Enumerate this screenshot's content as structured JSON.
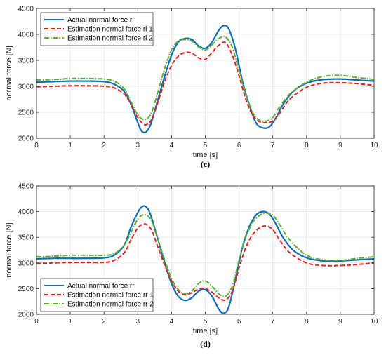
{
  "chart_data": [
    {
      "type": "line",
      "panel_label": "(c)",
      "xlabel": "time [s]",
      "ylabel": "normal force [N]",
      "xlim": [
        0,
        10
      ],
      "ylim": [
        2000,
        4500
      ],
      "xticks": [
        0,
        1,
        2,
        3,
        4,
        5,
        6,
        7,
        8,
        9,
        10
      ],
      "yticks": [
        2000,
        2500,
        3000,
        3500,
        4000,
        4500
      ],
      "grid": true,
      "legend_position": "top-left",
      "series": [
        {
          "name": "Actual normal force rl",
          "color": "#0c6eb8",
          "style": "solid",
          "x": [
            0,
            0.5,
            1,
            1.5,
            2,
            2.3,
            2.6,
            2.8,
            3.0,
            3.1,
            3.2,
            3.3,
            3.4,
            3.6,
            3.8,
            4.0,
            4.2,
            4.4,
            4.6,
            4.8,
            5.0,
            5.2,
            5.4,
            5.55,
            5.7,
            5.9,
            6.1,
            6.3,
            6.5,
            6.7,
            6.9,
            7.1,
            7.3,
            7.6,
            8.0,
            8.5,
            9.0,
            9.5,
            10
          ],
          "y": [
            3080,
            3090,
            3100,
            3100,
            3090,
            3040,
            2900,
            2650,
            2300,
            2150,
            2110,
            2160,
            2300,
            2750,
            3200,
            3600,
            3850,
            3920,
            3900,
            3780,
            3730,
            3850,
            4080,
            4170,
            4100,
            3700,
            3100,
            2650,
            2300,
            2200,
            2220,
            2400,
            2650,
            2900,
            3060,
            3130,
            3140,
            3120,
            3100
          ]
        },
        {
          "name": "Estimation normal force rl 1",
          "color": "#e8211f",
          "style": "dashed",
          "x": [
            0,
            0.5,
            1,
            1.5,
            2,
            2.3,
            2.6,
            2.8,
            3.0,
            3.2,
            3.4,
            3.6,
            3.8,
            4.0,
            4.2,
            4.4,
            4.6,
            4.8,
            5.0,
            5.2,
            5.4,
            5.6,
            5.8,
            6.0,
            6.2,
            6.4,
            6.6,
            6.8,
            7.0,
            7.2,
            7.5,
            8.0,
            8.5,
            9.0,
            9.5,
            10
          ],
          "y": [
            2990,
            3000,
            3010,
            3010,
            3000,
            2970,
            2850,
            2650,
            2400,
            2260,
            2350,
            2700,
            3100,
            3400,
            3580,
            3650,
            3640,
            3550,
            3520,
            3650,
            3790,
            3840,
            3600,
            3200,
            2750,
            2450,
            2320,
            2300,
            2330,
            2480,
            2750,
            2980,
            3060,
            3070,
            3050,
            3020
          ]
        },
        {
          "name": "Estimation normal force rl 2",
          "color": "#5cb034",
          "style": "dashdot",
          "x": [
            0,
            0.5,
            1,
            1.5,
            2,
            2.3,
            2.6,
            2.8,
            3.0,
            3.2,
            3.4,
            3.6,
            3.8,
            4.0,
            4.2,
            4.4,
            4.6,
            4.8,
            5.0,
            5.2,
            5.4,
            5.6,
            5.8,
            6.0,
            6.2,
            6.4,
            6.6,
            6.8,
            7.0,
            7.2,
            7.5,
            8.0,
            8.5,
            9.0,
            9.5,
            10
          ],
          "y": [
            3120,
            3130,
            3150,
            3150,
            3140,
            3100,
            2950,
            2700,
            2450,
            2360,
            2480,
            2900,
            3350,
            3700,
            3870,
            3900,
            3870,
            3760,
            3700,
            3800,
            3920,
            3950,
            3750,
            3300,
            2850,
            2500,
            2350,
            2330,
            2400,
            2600,
            2850,
            3080,
            3190,
            3210,
            3170,
            3130
          ]
        }
      ]
    },
    {
      "type": "line",
      "panel_label": "(d)",
      "xlabel": "time [s]",
      "ylabel": "normal force [N]",
      "xlim": [
        0,
        10
      ],
      "ylim": [
        2000,
        4500
      ],
      "xticks": [
        0,
        1,
        2,
        3,
        4,
        5,
        6,
        7,
        8,
        9,
        10
      ],
      "yticks": [
        2000,
        2500,
        3000,
        3500,
        4000,
        4500
      ],
      "grid": true,
      "legend_position": "bottom-left",
      "series": [
        {
          "name": "Actual normal force rr",
          "color": "#0c6eb8",
          "style": "solid",
          "x": [
            0,
            0.5,
            1,
            1.5,
            2,
            2.3,
            2.6,
            2.8,
            3.0,
            3.1,
            3.2,
            3.3,
            3.4,
            3.6,
            3.8,
            4.0,
            4.2,
            4.4,
            4.6,
            4.8,
            5.0,
            5.2,
            5.4,
            5.55,
            5.7,
            5.9,
            6.1,
            6.3,
            6.5,
            6.7,
            6.9,
            7.1,
            7.3,
            7.6,
            8.0,
            8.5,
            9.0,
            9.5,
            10
          ],
          "y": [
            3080,
            3090,
            3090,
            3090,
            3100,
            3150,
            3350,
            3700,
            3980,
            4080,
            4110,
            4050,
            3900,
            3450,
            3000,
            2600,
            2350,
            2270,
            2320,
            2450,
            2480,
            2350,
            2100,
            2020,
            2150,
            2700,
            3300,
            3700,
            3930,
            4000,
            3950,
            3750,
            3500,
            3250,
            3100,
            3040,
            3040,
            3060,
            3080
          ]
        },
        {
          "name": "Estimation normal force rr 1",
          "color": "#e8211f",
          "style": "dashed",
          "x": [
            0,
            0.5,
            1,
            1.5,
            2,
            2.3,
            2.6,
            2.8,
            3.0,
            3.2,
            3.4,
            3.6,
            3.8,
            4.0,
            4.2,
            4.4,
            4.6,
            4.8,
            5.0,
            5.2,
            5.4,
            5.6,
            5.8,
            6.0,
            6.2,
            6.4,
            6.6,
            6.8,
            7.0,
            7.2,
            7.5,
            8.0,
            8.5,
            9.0,
            9.5,
            10
          ],
          "y": [
            2990,
            3000,
            3010,
            3010,
            3010,
            3050,
            3200,
            3450,
            3680,
            3760,
            3650,
            3300,
            2950,
            2650,
            2450,
            2380,
            2420,
            2490,
            2500,
            2430,
            2320,
            2280,
            2450,
            2900,
            3300,
            3550,
            3680,
            3720,
            3650,
            3450,
            3200,
            3000,
            2950,
            2950,
            2970,
            3000
          ]
        },
        {
          "name": "Estimation normal force rr 2",
          "color": "#5cb034",
          "style": "dashdot",
          "x": [
            0,
            0.5,
            1,
            1.5,
            2,
            2.3,
            2.6,
            2.8,
            3.0,
            3.2,
            3.4,
            3.6,
            3.8,
            4.0,
            4.2,
            4.4,
            4.6,
            4.8,
            5.0,
            5.2,
            5.4,
            5.6,
            5.8,
            6.0,
            6.2,
            6.4,
            6.6,
            6.8,
            7.0,
            7.2,
            7.5,
            8.0,
            8.5,
            9.0,
            9.5,
            10
          ],
          "y": [
            3120,
            3130,
            3150,
            3150,
            3150,
            3180,
            3350,
            3600,
            3850,
            3940,
            3830,
            3450,
            3050,
            2700,
            2480,
            2400,
            2450,
            2600,
            2650,
            2550,
            2400,
            2350,
            2550,
            3050,
            3500,
            3780,
            3920,
            3970,
            3930,
            3750,
            3450,
            3150,
            3060,
            3050,
            3090,
            3120
          ]
        }
      ]
    }
  ]
}
